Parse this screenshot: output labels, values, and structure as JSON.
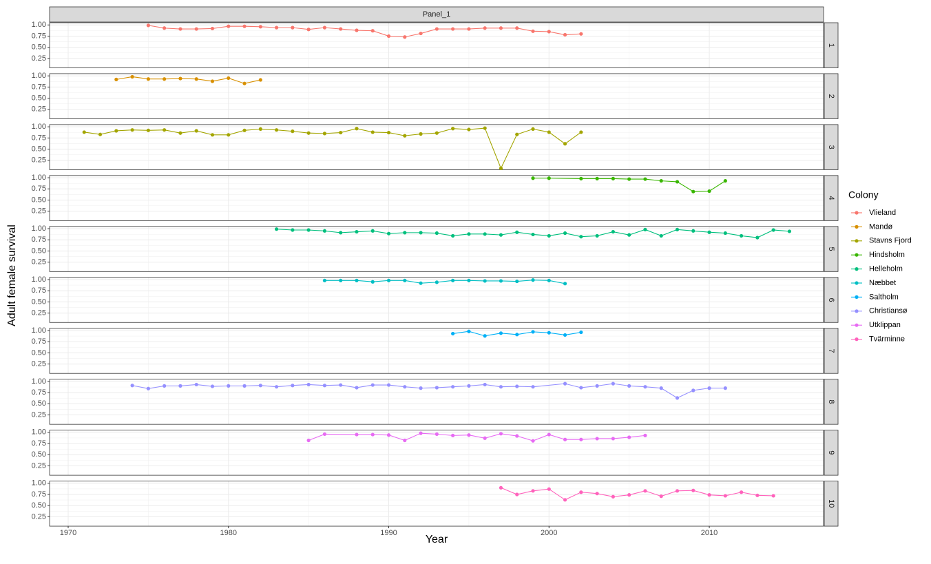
{
  "strip": "Panel_1",
  "xlabel": "Year",
  "ylabel": "Adult female survival",
  "legend_title": "Colony",
  "chart_data": [
    {
      "type": "line",
      "panel_label": "1",
      "x": [
        1975,
        1976,
        1977,
        1978,
        1979,
        1980,
        1981,
        1982,
        1983,
        1984,
        1985,
        1986,
        1987,
        1988,
        1989,
        1990,
        1991,
        1992,
        1993,
        1994,
        1995,
        1996,
        1997,
        1998,
        1999,
        2000,
        2001,
        2002
      ],
      "series": [
        {
          "name": "Vlieland",
          "color": "#F8766D",
          "values": [
            0.99,
            0.93,
            0.91,
            0.91,
            0.92,
            0.97,
            0.97,
            0.96,
            0.94,
            0.94,
            0.9,
            0.94,
            0.91,
            0.88,
            0.87,
            0.75,
            0.73,
            0.81,
            0.91,
            0.91,
            0.91,
            0.93,
            0.93,
            0.93,
            0.86,
            0.85,
            0.78,
            0.8
          ]
        }
      ],
      "xlim": [
        1968.84,
        2017.13
      ],
      "xticks": [
        1970,
        1980,
        1990,
        2000,
        2010
      ],
      "ylim": [
        0.04,
        1.05
      ],
      "yticks": [
        {
          "value": 0.25,
          "label": "0.25"
        },
        {
          "value": 0.5,
          "label": "0.50"
        },
        {
          "value": 0.75,
          "label": "0.75"
        },
        {
          "value": 1,
          "label": "1.00"
        }
      ],
      "grid": true
    },
    {
      "type": "line",
      "panel_label": "2",
      "x": [
        1973,
        1974,
        1975,
        1976,
        1977,
        1978,
        1979,
        1980,
        1981,
        1982
      ],
      "series": [
        {
          "name": "Mandø",
          "color": "#D89000",
          "values": [
            0.92,
            0.98,
            0.93,
            0.93,
            0.94,
            0.93,
            0.88,
            0.95,
            0.83,
            0.91
          ]
        }
      ],
      "xlim": [
        1968.84,
        2017.13
      ],
      "xticks": [
        1970,
        1980,
        1990,
        2000,
        2010
      ],
      "ylim": [
        0.04,
        1.05
      ],
      "yticks": [
        {
          "value": 0.25,
          "label": "0.25"
        },
        {
          "value": 0.5,
          "label": "0.50"
        },
        {
          "value": 0.75,
          "label": "0.75"
        },
        {
          "value": 1,
          "label": "1.00"
        }
      ],
      "grid": true
    },
    {
      "type": "line",
      "panel_label": "3",
      "x": [
        1971,
        1972,
        1973,
        1974,
        1975,
        1976,
        1977,
        1978,
        1979,
        1980,
        1981,
        1982,
        1983,
        1984,
        1985,
        1986,
        1987,
        1988,
        1989,
        1990,
        1991,
        1992,
        1993,
        1994,
        1995,
        1996,
        1997,
        1998,
        1999,
        2000,
        2001,
        2002
      ],
      "series": [
        {
          "name": "Stavns Fjord",
          "color": "#A3A500",
          "values": [
            0.88,
            0.83,
            0.91,
            0.93,
            0.92,
            0.93,
            0.86,
            0.91,
            0.82,
            0.82,
            0.92,
            0.95,
            0.93,
            0.9,
            0.86,
            0.85,
            0.87,
            0.96,
            0.88,
            0.87,
            0.8,
            0.84,
            0.86,
            0.96,
            0.94,
            0.97,
            0.07,
            0.83,
            0.95,
            0.88,
            0.62,
            0.88
          ]
        }
      ],
      "xlim": [
        1968.84,
        2017.13
      ],
      "xticks": [
        1970,
        1980,
        1990,
        2000,
        2010
      ],
      "ylim": [
        0.04,
        1.05
      ],
      "yticks": [
        {
          "value": 0.25,
          "label": "0.25"
        },
        {
          "value": 0.5,
          "label": "0.50"
        },
        {
          "value": 0.75,
          "label": "0.75"
        },
        {
          "value": 1,
          "label": "1.00"
        }
      ],
      "grid": true
    },
    {
      "type": "line",
      "panel_label": "4",
      "x": [
        1999,
        2000,
        2002,
        2003,
        2004,
        2005,
        2006,
        2007,
        2008,
        2009,
        2010,
        2011
      ],
      "series": [
        {
          "name": "Hindsholm",
          "color": "#39B600",
          "values": [
            0.99,
            0.99,
            0.98,
            0.98,
            0.98,
            0.97,
            0.97,
            0.93,
            0.91,
            0.69,
            0.7,
            0.93
          ]
        }
      ],
      "xlim": [
        1968.84,
        2017.13
      ],
      "xticks": [
        1970,
        1980,
        1990,
        2000,
        2010
      ],
      "ylim": [
        0.04,
        1.05
      ],
      "yticks": [
        {
          "value": 0.25,
          "label": "0.25"
        },
        {
          "value": 0.5,
          "label": "0.50"
        },
        {
          "value": 0.75,
          "label": "0.75"
        },
        {
          "value": 1,
          "label": "1.00"
        }
      ],
      "grid": true
    },
    {
      "type": "line",
      "panel_label": "5",
      "x": [
        1983,
        1984,
        1985,
        1986,
        1987,
        1988,
        1989,
        1990,
        1991,
        1992,
        1993,
        1994,
        1995,
        1996,
        1997,
        1998,
        1999,
        2000,
        2001,
        2002,
        2003,
        2004,
        2005,
        2006,
        2007,
        2008,
        2009,
        2010,
        2011,
        2012,
        2013,
        2014,
        2015
      ],
      "series": [
        {
          "name": "Helleholm",
          "color": "#00BF7D",
          "values": [
            0.99,
            0.97,
            0.97,
            0.95,
            0.91,
            0.93,
            0.95,
            0.89,
            0.91,
            0.91,
            0.9,
            0.84,
            0.88,
            0.88,
            0.86,
            0.92,
            0.87,
            0.84,
            0.9,
            0.82,
            0.84,
            0.93,
            0.86,
            0.98,
            0.84,
            0.98,
            0.95,
            0.92,
            0.9,
            0.84,
            0.8,
            0.97,
            0.94
          ]
        }
      ],
      "xlim": [
        1968.84,
        2017.13
      ],
      "xticks": [
        1970,
        1980,
        1990,
        2000,
        2010
      ],
      "ylim": [
        0.04,
        1.05
      ],
      "yticks": [
        {
          "value": 0.25,
          "label": "0.25"
        },
        {
          "value": 0.5,
          "label": "0.50"
        },
        {
          "value": 0.75,
          "label": "0.75"
        },
        {
          "value": 1,
          "label": "1.00"
        }
      ],
      "grid": true
    },
    {
      "type": "line",
      "panel_label": "6",
      "x": [
        1986,
        1987,
        1988,
        1989,
        1990,
        1991,
        1992,
        1993,
        1994,
        1995,
        1996,
        1997,
        1998,
        1999,
        2000,
        2001
      ],
      "series": [
        {
          "name": "Næbbet",
          "color": "#00BFC4",
          "values": [
            0.98,
            0.98,
            0.98,
            0.95,
            0.98,
            0.98,
            0.92,
            0.94,
            0.98,
            0.98,
            0.97,
            0.97,
            0.96,
            0.99,
            0.98,
            0.91
          ]
        }
      ],
      "xlim": [
        1968.84,
        2017.13
      ],
      "xticks": [
        1970,
        1980,
        1990,
        2000,
        2010
      ],
      "ylim": [
        0.04,
        1.05
      ],
      "yticks": [
        {
          "value": 0.25,
          "label": "0.25"
        },
        {
          "value": 0.5,
          "label": "0.50"
        },
        {
          "value": 0.75,
          "label": "0.75"
        },
        {
          "value": 1,
          "label": "1.00"
        }
      ],
      "grid": true
    },
    {
      "type": "line",
      "panel_label": "7",
      "x": [
        1994,
        1995,
        1996,
        1997,
        1998,
        1999,
        2000,
        2001,
        2002
      ],
      "series": [
        {
          "name": "Saltholm",
          "color": "#00B0F6",
          "values": [
            0.93,
            0.98,
            0.88,
            0.94,
            0.91,
            0.97,
            0.95,
            0.9,
            0.96
          ]
        }
      ],
      "xlim": [
        1968.84,
        2017.13
      ],
      "xticks": [
        1970,
        1980,
        1990,
        2000,
        2010
      ],
      "ylim": [
        0.04,
        1.05
      ],
      "yticks": [
        {
          "value": 0.25,
          "label": "0.25"
        },
        {
          "value": 0.5,
          "label": "0.50"
        },
        {
          "value": 0.75,
          "label": "0.75"
        },
        {
          "value": 1,
          "label": "1.00"
        }
      ],
      "grid": true
    },
    {
      "type": "line",
      "panel_label": "8",
      "x": [
        1974,
        1975,
        1976,
        1977,
        1978,
        1979,
        1980,
        1981,
        1982,
        1983,
        1984,
        1985,
        1986,
        1987,
        1988,
        1989,
        1990,
        1991,
        1992,
        1993,
        1994,
        1995,
        1996,
        1997,
        1998,
        1999,
        2001,
        2002,
        2003,
        2004,
        2005,
        2006,
        2007,
        2008,
        2009,
        2010,
        2011
      ],
      "series": [
        {
          "name": "Christiansø",
          "color": "#9590FF",
          "values": [
            0.91,
            0.84,
            0.9,
            0.9,
            0.93,
            0.89,
            0.9,
            0.9,
            0.91,
            0.88,
            0.91,
            0.93,
            0.91,
            0.92,
            0.86,
            0.92,
            0.92,
            0.88,
            0.85,
            0.86,
            0.88,
            0.9,
            0.93,
            0.88,
            0.89,
            0.88,
            0.95,
            0.86,
            0.9,
            0.95,
            0.9,
            0.88,
            0.85,
            0.63,
            0.8,
            0.85,
            0.85
          ]
        }
      ],
      "xlim": [
        1968.84,
        2017.13
      ],
      "xticks": [
        1970,
        1980,
        1990,
        2000,
        2010
      ],
      "ylim": [
        0.04,
        1.05
      ],
      "yticks": [
        {
          "value": 0.25,
          "label": "0.25"
        },
        {
          "value": 0.5,
          "label": "0.50"
        },
        {
          "value": 0.75,
          "label": "0.75"
        },
        {
          "value": 1,
          "label": "1.00"
        }
      ],
      "grid": true
    },
    {
      "type": "line",
      "panel_label": "9",
      "x": [
        1985,
        1986,
        1988,
        1989,
        1990,
        1991,
        1992,
        1993,
        1994,
        1995,
        1996,
        1997,
        1998,
        1999,
        2000,
        2001,
        2002,
        2003,
        2004,
        2005,
        2006
      ],
      "series": [
        {
          "name": "Utklippan",
          "color": "#E76BF3",
          "values": [
            0.82,
            0.96,
            0.95,
            0.95,
            0.94,
            0.82,
            0.98,
            0.96,
            0.93,
            0.94,
            0.87,
            0.97,
            0.92,
            0.81,
            0.95,
            0.84,
            0.84,
            0.86,
            0.86,
            0.89,
            0.93
          ]
        }
      ],
      "xlim": [
        1968.84,
        2017.13
      ],
      "xticks": [
        1970,
        1980,
        1990,
        2000,
        2010
      ],
      "ylim": [
        0.04,
        1.05
      ],
      "yticks": [
        {
          "value": 0.25,
          "label": "0.25"
        },
        {
          "value": 0.5,
          "label": "0.50"
        },
        {
          "value": 0.75,
          "label": "0.75"
        },
        {
          "value": 1,
          "label": "1.00"
        }
      ],
      "grid": true
    },
    {
      "type": "line",
      "panel_label": "10",
      "x": [
        1997,
        1998,
        1999,
        2000,
        2001,
        2002,
        2003,
        2004,
        2005,
        2006,
        2007,
        2008,
        2009,
        2010,
        2011,
        2012,
        2013,
        2014
      ],
      "series": [
        {
          "name": "Tvärminne",
          "color": "#FF62BC",
          "values": [
            0.9,
            0.75,
            0.83,
            0.87,
            0.63,
            0.8,
            0.77,
            0.7,
            0.74,
            0.83,
            0.71,
            0.83,
            0.84,
            0.74,
            0.72,
            0.8,
            0.73,
            0.72
          ]
        }
      ],
      "xlim": [
        1968.84,
        2017.13
      ],
      "xticks": [
        1970,
        1980,
        1990,
        2000,
        2010
      ],
      "ylim": [
        0.04,
        1.05
      ],
      "yticks": [
        {
          "value": 0.25,
          "label": "0.25"
        },
        {
          "value": 0.5,
          "label": "0.50"
        },
        {
          "value": 0.75,
          "label": "0.75"
        },
        {
          "value": 1,
          "label": "1.00"
        }
      ],
      "grid": true
    }
  ]
}
